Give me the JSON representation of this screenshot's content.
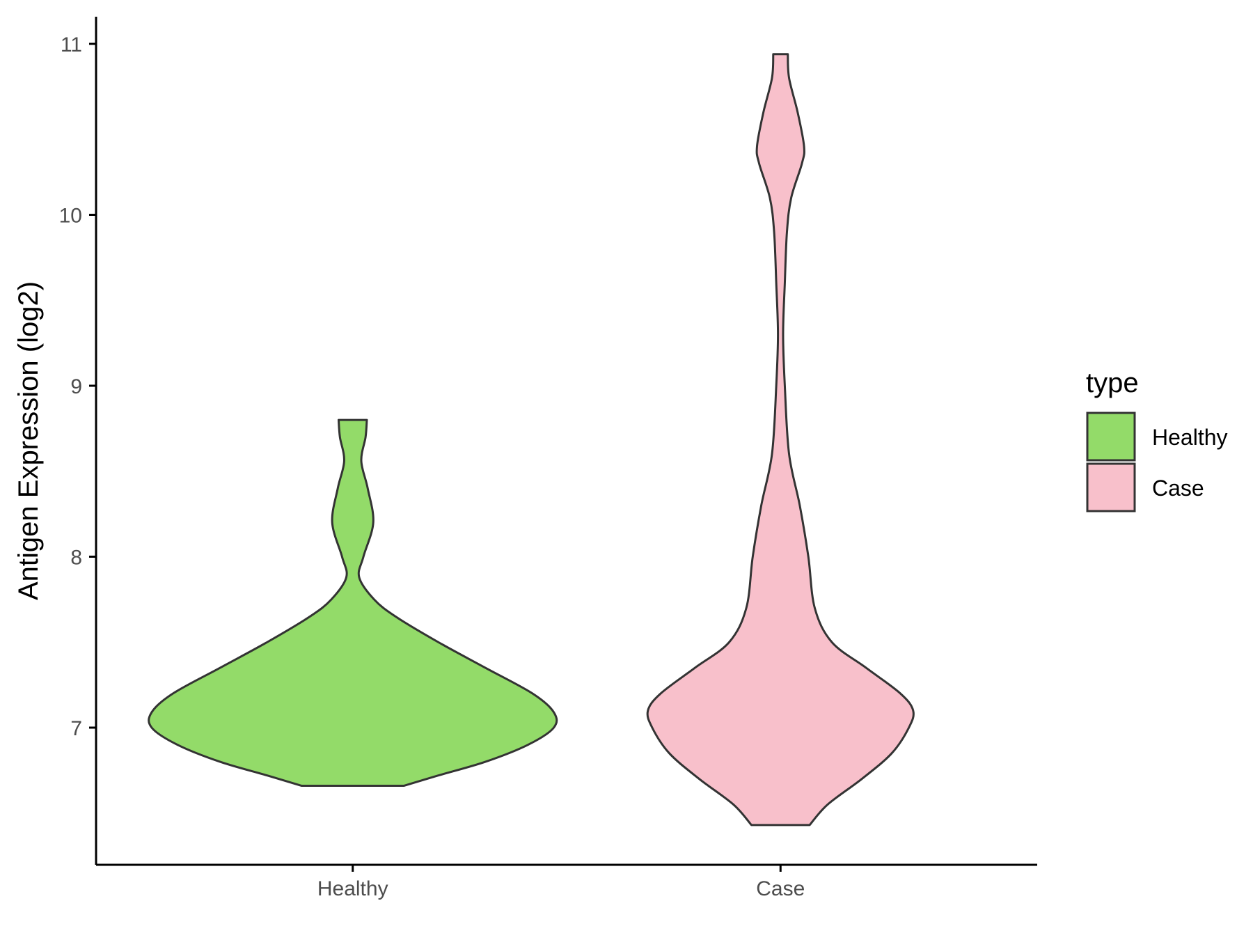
{
  "chart_data": {
    "type": "violin",
    "title": "",
    "xlabel": "",
    "ylabel": "Antigen Expression (log2)",
    "ylim": [
      6.2,
      11.15
    ],
    "yticks": [
      7,
      8,
      9,
      10,
      11
    ],
    "categories": [
      "Healthy",
      "Case"
    ],
    "grid": false,
    "legend": {
      "title": "type",
      "position": "right",
      "entries": [
        {
          "label": "Healthy",
          "color": "#93db69"
        },
        {
          "label": "Case",
          "color": "#f8c0cb"
        }
      ]
    },
    "series": [
      {
        "name": "Healthy",
        "color": "#93db69",
        "profile": [
          {
            "y": 6.66,
            "hw": 0.12
          },
          {
            "y": 6.72,
            "hw": 0.2
          },
          {
            "y": 6.8,
            "hw": 0.31
          },
          {
            "y": 6.9,
            "hw": 0.41
          },
          {
            "y": 7.0,
            "hw": 0.47
          },
          {
            "y": 7.09,
            "hw": 0.47
          },
          {
            "y": 7.2,
            "hw": 0.42
          },
          {
            "y": 7.35,
            "hw": 0.31
          },
          {
            "y": 7.5,
            "hw": 0.2
          },
          {
            "y": 7.65,
            "hw": 0.1
          },
          {
            "y": 7.75,
            "hw": 0.05
          },
          {
            "y": 7.88,
            "hw": 0.015
          },
          {
            "y": 8.0,
            "hw": 0.025
          },
          {
            "y": 8.2,
            "hw": 0.048
          },
          {
            "y": 8.4,
            "hw": 0.035
          },
          {
            "y": 8.56,
            "hw": 0.02
          },
          {
            "y": 8.7,
            "hw": 0.03
          },
          {
            "y": 8.8,
            "hw": 0.033
          }
        ]
      },
      {
        "name": "Case",
        "color": "#f8c0cb",
        "profile": [
          {
            "y": 6.43,
            "hw": 0.068
          },
          {
            "y": 6.55,
            "hw": 0.11
          },
          {
            "y": 6.7,
            "hw": 0.19
          },
          {
            "y": 6.85,
            "hw": 0.26
          },
          {
            "y": 7.0,
            "hw": 0.3
          },
          {
            "y": 7.1,
            "hw": 0.31
          },
          {
            "y": 7.2,
            "hw": 0.28
          },
          {
            "y": 7.35,
            "hw": 0.2
          },
          {
            "y": 7.5,
            "hw": 0.12
          },
          {
            "y": 7.7,
            "hw": 0.08
          },
          {
            "y": 8.0,
            "hw": 0.065
          },
          {
            "y": 8.3,
            "hw": 0.045
          },
          {
            "y": 8.6,
            "hw": 0.02
          },
          {
            "y": 9.0,
            "hw": 0.01
          },
          {
            "y": 9.3,
            "hw": 0.006
          },
          {
            "y": 9.6,
            "hw": 0.01
          },
          {
            "y": 9.9,
            "hw": 0.015
          },
          {
            "y": 10.1,
            "hw": 0.025
          },
          {
            "y": 10.3,
            "hw": 0.05
          },
          {
            "y": 10.4,
            "hw": 0.055
          },
          {
            "y": 10.6,
            "hw": 0.04
          },
          {
            "y": 10.8,
            "hw": 0.02
          },
          {
            "y": 10.94,
            "hw": 0.017
          }
        ]
      }
    ]
  }
}
